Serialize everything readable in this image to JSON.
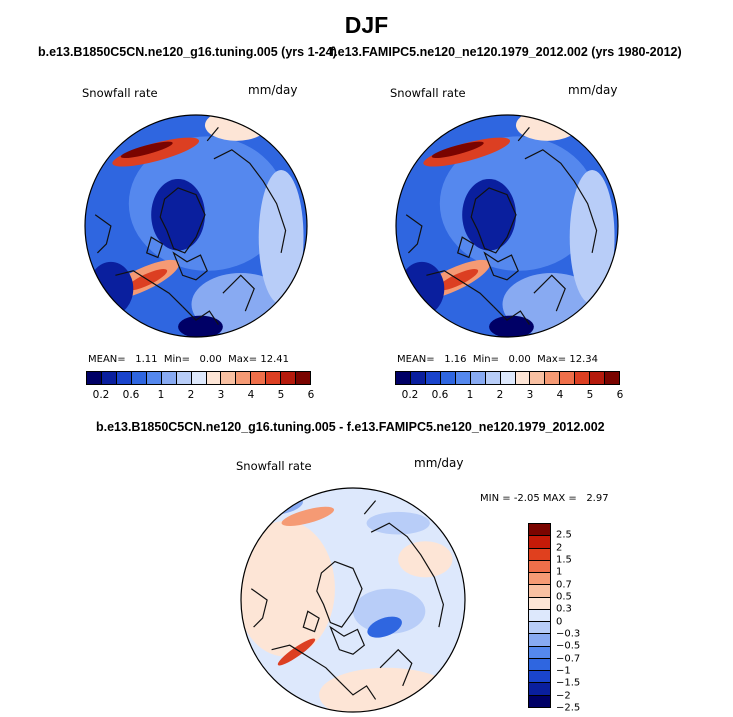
{
  "figure": {
    "main_title": "DJF"
  },
  "panel_left": {
    "run_title": "b.e13.B1850C5CN.ne120_g16.tuning.005 (yrs 1-24)",
    "variable": "Snowfall rate",
    "units": "mm/day",
    "mean_label": "MEAN=",
    "mean_value": "1.11",
    "min_label": "Min=",
    "min_value": "0.00",
    "max_label": "Max=",
    "max_value": "12.41"
  },
  "panel_right": {
    "run_title": "f.e13.FAMIPC5.ne120_ne120.1979_2012.002 (yrs 1980-2012)",
    "variable": "Snowfall rate",
    "units": "mm/day",
    "mean_label": "MEAN=",
    "mean_value": "1.16",
    "min_label": "Min=",
    "min_value": "0.00",
    "max_label": "Max=",
    "max_value": "12.34"
  },
  "panel_diff": {
    "run_title": "b.e13.B1850C5CN.ne120_g16.tuning.005 - f.e13.FAMIPC5.ne120_ne120.1979_2012.002",
    "variable": "Snowfall rate",
    "units": "mm/day",
    "min_label": "MIN =",
    "min_value": "-2.05",
    "max_label": "MAX =",
    "max_value": "2.97"
  },
  "colorbar_abs": {
    "colors": [
      "#000066",
      "#0a1f9e",
      "#1a44cc",
      "#2f66e0",
      "#5588ee",
      "#88aaf2",
      "#b8cdf8",
      "#dde8fc",
      "#fde5d6",
      "#f8c0a2",
      "#f59a74",
      "#ef6f4a",
      "#dc3f22",
      "#b51a0c",
      "#7a0400"
    ],
    "ticks": [
      "0.2",
      "0.6",
      "1",
      "2",
      "3",
      "4",
      "5",
      "6"
    ]
  },
  "colorbar_diff": {
    "colors": [
      "#7a0400",
      "#c41a08",
      "#e0401e",
      "#ef6f4a",
      "#f59a74",
      "#f8c0a2",
      "#fde5d6",
      "#dde8fc",
      "#b8cdf8",
      "#88aaf2",
      "#5588ee",
      "#2f66e0",
      "#1a44cc",
      "#0a1f9e",
      "#000066"
    ],
    "ticks": [
      "2.5",
      "2",
      "1.5",
      "1",
      "0.7",
      "0.5",
      "0.3",
      "0",
      "−0.3",
      "−0.5",
      "−0.7",
      "−1",
      "−1.5",
      "−2",
      "−2.5"
    ]
  },
  "map_colors": {
    "deep": "#0a1f9e",
    "blue": "#2f66e0",
    "mid": "#5588ee",
    "light": "#88aaf2",
    "pale": "#b8cdf8",
    "paler": "#dde8fc",
    "peach": "#fde5d6",
    "salmon": "#f59a74",
    "red": "#dc3f22",
    "dark": "#7a0400",
    "navy": "#000066",
    "coast": "#111111"
  }
}
